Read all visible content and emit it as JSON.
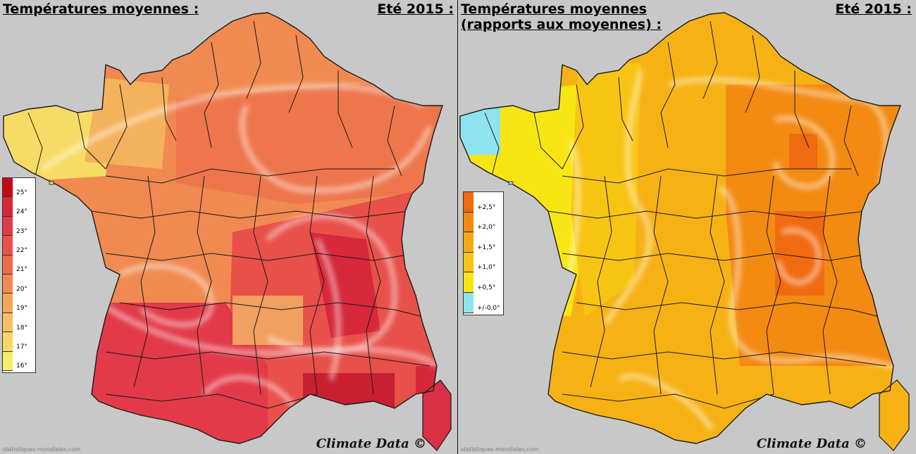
{
  "left": {
    "title": "Températures moyennes :",
    "season": "Eté 2015 :",
    "legend": [
      {
        "label": "25°",
        "color": "#c20a14"
      },
      {
        "label": "24°",
        "color": "#d6283a"
      },
      {
        "label": "23°",
        "color": "#e23a48"
      },
      {
        "label": "22°",
        "color": "#e8504a"
      },
      {
        "label": "21°",
        "color": "#ee6b4a"
      },
      {
        "label": "20°",
        "color": "#f08a50"
      },
      {
        "label": "19°",
        "color": "#f4a55a"
      },
      {
        "label": "18°",
        "color": "#f7c060"
      },
      {
        "label": "17°",
        "color": "#f8d862"
      },
      {
        "label": "16°",
        "color": "#f6ec6a"
      }
    ],
    "credit": "Climate Data ©",
    "source": "statistiques-mondiales.com"
  },
  "right": {
    "title_line1": "Températures moyennes",
    "title_line2": "(rapports aux moyennes) :",
    "season": "Eté 2015 :",
    "legend": [
      {
        "label": "+2,5°",
        "color": "#f06a10"
      },
      {
        "label": "+2,0°",
        "color": "#f38a12"
      },
      {
        "label": "+1,5°",
        "color": "#f6a812"
      },
      {
        "label": "+1,0°",
        "color": "#f8c414"
      },
      {
        "label": "+0,5°",
        "color": "#f8e414"
      },
      {
        "label": "+/-0,0°",
        "color": "#8ee4ee"
      }
    ],
    "credit": "Climate Data ©",
    "source": "statistiques-mondiales.com"
  },
  "colors": {
    "background": "#c8c8c8",
    "border": "#1a1a1a",
    "divider": "#111111"
  }
}
